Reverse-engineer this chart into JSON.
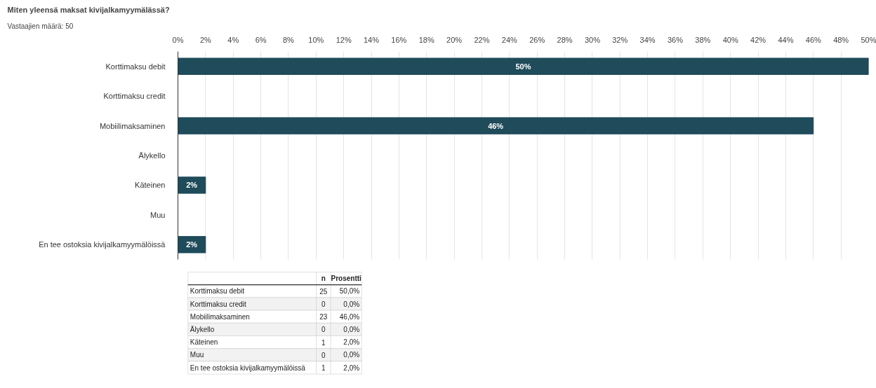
{
  "chart_data": {
    "type": "bar",
    "orientation": "horizontal",
    "title": "Miten yleensä maksat kivijalkamyymälässä?",
    "subtitle": "Vastaajien määrä: 50",
    "categories": [
      "Korttimaksu debit",
      "Korttimaksu credit",
      "Mobiilimaksaminen",
      "Älykello",
      "Käteinen",
      "Muu",
      "En tee ostoksia kivijalkamyymälöissä"
    ],
    "values": [
      50,
      0,
      46,
      0,
      2,
      0,
      2
    ],
    "value_labels": [
      "50%",
      null,
      "46%",
      null,
      "2%",
      null,
      "2%"
    ],
    "color": "#1f4b5a",
    "xlim": [
      0,
      50
    ],
    "xticks": [
      {
        "value": 0,
        "label": "0%"
      },
      {
        "value": 2,
        "label": "2%"
      },
      {
        "value": 4,
        "label": "4%"
      },
      {
        "value": 6,
        "label": "6%"
      },
      {
        "value": 8,
        "label": "8%"
      },
      {
        "value": 10,
        "label": "10%"
      },
      {
        "value": 12,
        "label": "12%"
      },
      {
        "value": 14,
        "label": "14%"
      },
      {
        "value": 16,
        "label": "16%"
      },
      {
        "value": 18,
        "label": "18%"
      },
      {
        "value": 20,
        "label": "20%"
      },
      {
        "value": 22,
        "label": "22%"
      },
      {
        "value": 24,
        "label": "24%"
      },
      {
        "value": 26,
        "label": "26%"
      },
      {
        "value": 28,
        "label": "28%"
      },
      {
        "value": 30,
        "label": "30%"
      },
      {
        "value": 32,
        "label": "32%"
      },
      {
        "value": 34,
        "label": "34%"
      },
      {
        "value": 36,
        "label": "36%"
      },
      {
        "value": 38,
        "label": "38%"
      },
      {
        "value": 40,
        "label": "40%"
      },
      {
        "value": 42,
        "label": "42%"
      },
      {
        "value": 44,
        "label": "44%"
      },
      {
        "value": 46,
        "label": "46%"
      },
      {
        "value": 48,
        "label": "48%"
      },
      {
        "value": 50,
        "label": "50%"
      }
    ],
    "grid": "x",
    "annotations": [
      "n",
      "Prosentti",
      "25",
      "50,0%",
      "0",
      "0,0%",
      "23",
      "46,0%",
      "0",
      "0,0%",
      "1",
      "2,0%",
      "0",
      "0,0%",
      "1",
      "2,0%"
    ]
  }
}
